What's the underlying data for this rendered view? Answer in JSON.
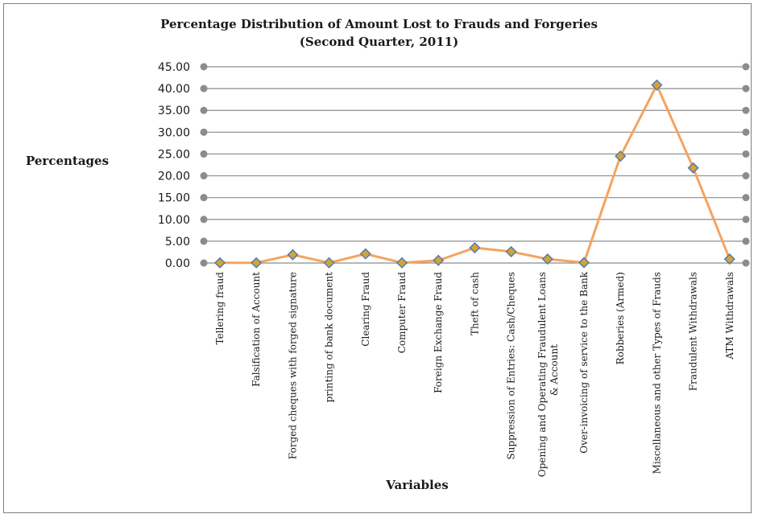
{
  "chart_data": {
    "type": "line",
    "title": "Percentage Distribution of Amount Lost to Frauds and Forgeries",
    "subtitle": "(Second Quarter, 2011)",
    "xlabel": "Variables",
    "ylabel": "Percentages",
    "ylim": [
      0,
      45
    ],
    "yticks": [
      "0.00",
      "5.00",
      "10.00",
      "15.00",
      "20.00",
      "25.00",
      "30.00",
      "35.00",
      "40.00",
      "45.00"
    ],
    "grid": true,
    "categories": [
      "Tellering fraud",
      "Falsification of Account",
      "Forged cheques with forged signature",
      "printing of bank document",
      "Clearing Fraud",
      "Computer Fraud",
      "Foreign Exchange Fraud",
      "Theft of cash",
      "Suppression of Entries: Cash/Cheques",
      "Opening and Operating Fraudulent Loans|& Account",
      "Over-invoicing of service to the Bank",
      "Robberies (Armed)",
      "Miscellaneous and other Types of Frauds",
      "Fraudulent Withdrawals",
      "ATM Withdrawals"
    ],
    "series": [
      {
        "values": [
          0.05,
          0.05,
          1.9,
          0.05,
          2.1,
          0.05,
          0.6,
          3.5,
          2.6,
          0.9,
          0.1,
          24.5,
          40.8,
          21.8,
          0.9
        ]
      }
    ],
    "colors": {
      "line": "#f4a460",
      "marker_fill": "#d7a431",
      "marker_stroke": "#4e7bb4",
      "grid": "#8c8c8c"
    }
  }
}
